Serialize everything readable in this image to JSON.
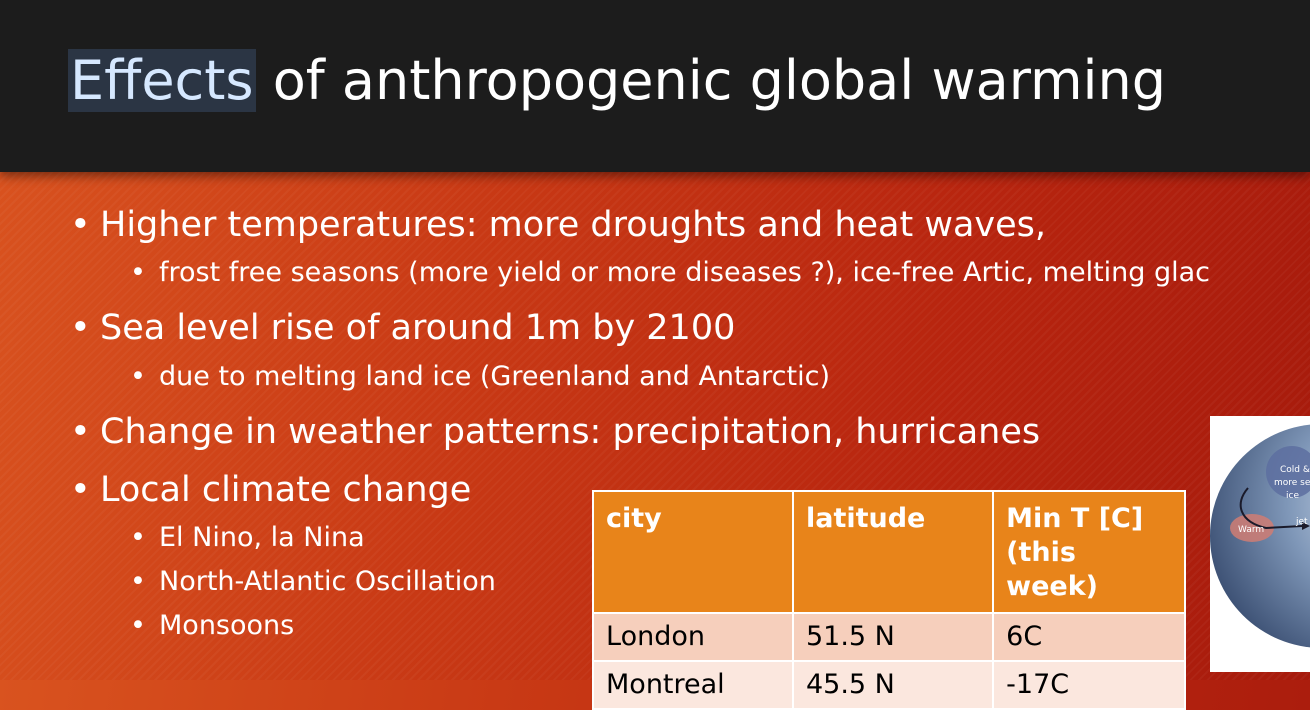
{
  "title": {
    "highlighted": "Effects",
    "rest": " of anthropogenic global warming"
  },
  "bullets": [
    {
      "text": "Higher temperatures: more droughts and heat waves,",
      "sub": [
        "frost free seasons (more yield or more diseases ?), ice-free Artic, melting glac"
      ]
    },
    {
      "text": "Sea level rise of around 1m by 2100",
      "sub": [
        "due to melting land ice (Greenland and Antarctic)"
      ]
    },
    {
      "text": "Change in weather patterns: precipitation, hurricanes",
      "sub": []
    },
    {
      "text": "Local climate change",
      "sub": [
        "El Nino, la Nina",
        "North-Atlantic Oscillation",
        "Monsoons"
      ]
    }
  ],
  "table": {
    "headers": [
      "city",
      "latitude",
      "Min T [C]",
      "(this week)"
    ],
    "rows": [
      [
        "London",
        "51.5 N",
        "6C"
      ],
      [
        "Montreal",
        "45.5 N",
        "-17C"
      ]
    ]
  },
  "globe": {
    "labels": [
      "Cold &",
      "more se",
      "ice",
      "Warm",
      "jet"
    ]
  }
}
